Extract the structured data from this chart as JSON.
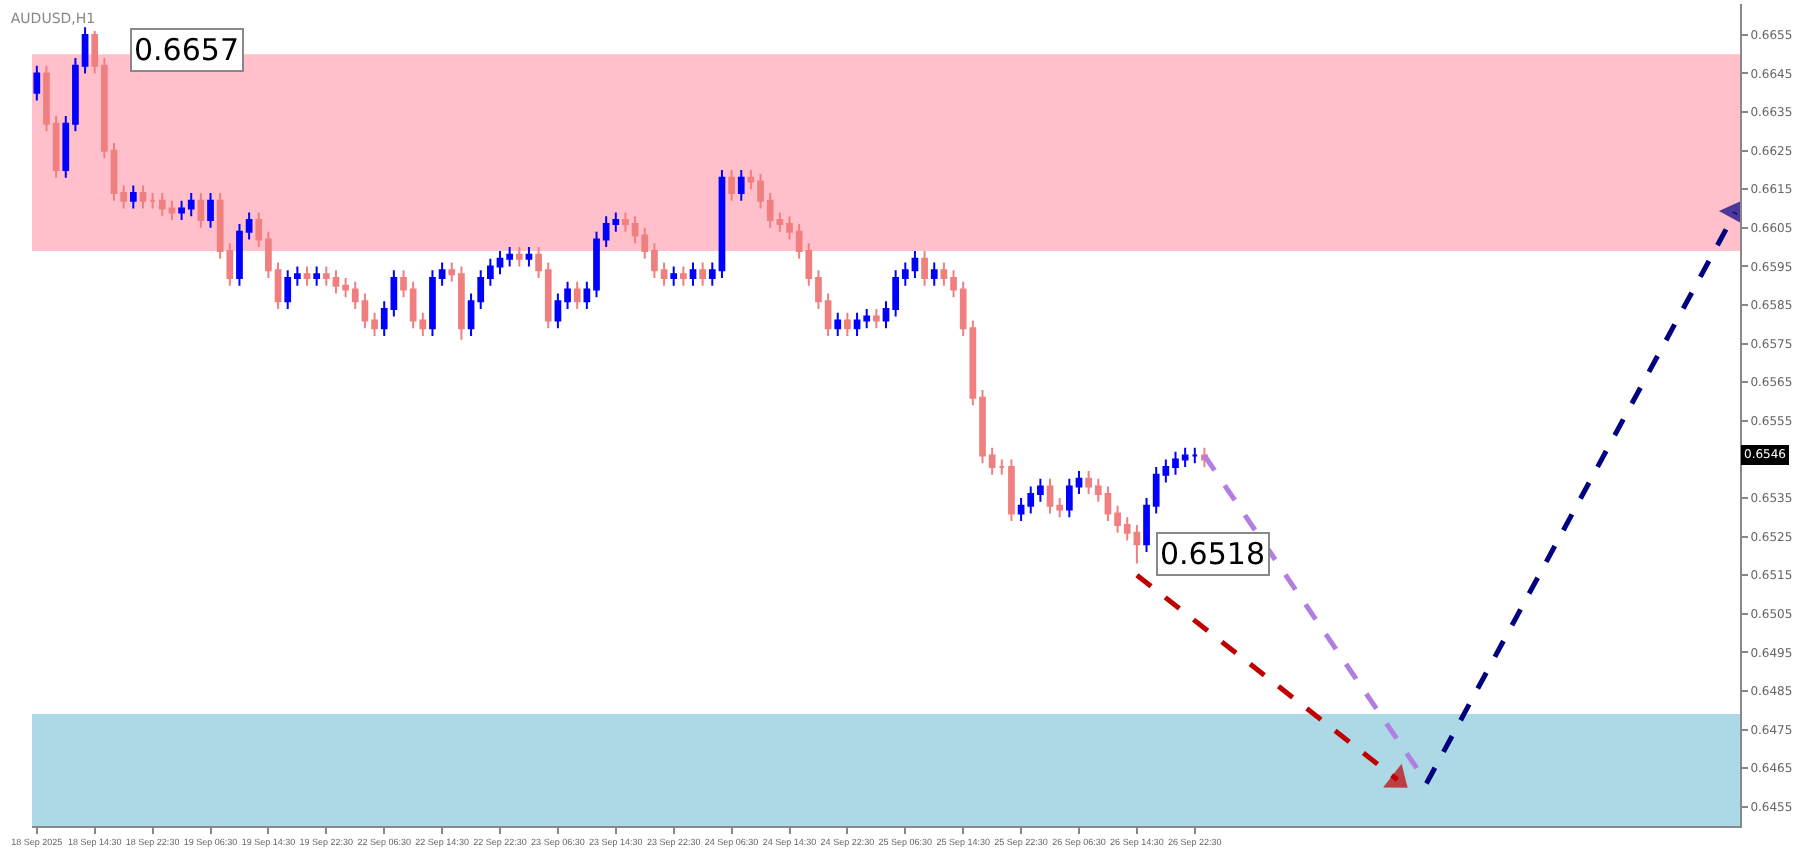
{
  "chart_data": {
    "type": "candlestick",
    "title": "AUDUSD,H1",
    "categories": [
      "18 Sep 2025",
      null,
      null,
      null,
      null,
      null,
      "18 Sep 14:30",
      null,
      null,
      null,
      null,
      null,
      "18 Sep 22:30",
      null,
      null,
      null,
      null,
      null,
      "19 Sep 06:30",
      null,
      null,
      null,
      null,
      null,
      "19 Sep 14:30",
      null,
      null,
      null,
      null,
      null,
      "19 Sep 22:30",
      null,
      null,
      null,
      null,
      null,
      "22 Sep 06:30",
      null,
      null,
      null,
      null,
      null,
      "22 Sep 14:30",
      null,
      null,
      null,
      null,
      null,
      "22 Sep 22:30",
      null,
      null,
      null,
      null,
      null,
      "23 Sep 06:30",
      null,
      null,
      null,
      null,
      null,
      "23 Sep 14:30",
      null,
      null,
      null,
      null,
      null,
      "23 Sep 22:30",
      null,
      null,
      null,
      null,
      null,
      "24 Sep 06:30",
      null,
      null,
      null,
      null,
      null,
      "24 Sep 14:30",
      null,
      null,
      null,
      null,
      null,
      "24 Sep 22:30",
      null,
      null,
      null,
      null,
      null,
      "25 Sep 06:30",
      null,
      null,
      null,
      null,
      null,
      "25 Sep 14:30",
      null,
      null,
      null,
      null,
      null,
      "25 Sep 22:30",
      null,
      null,
      null,
      null,
      null,
      "26 Sep 06:30",
      null,
      null,
      null,
      null,
      null,
      "26 Sep 14:30",
      null,
      null,
      null,
      null,
      null,
      "26 Sep 22:30",
      null,
      null,
      null,
      null,
      null,
      null,
      null,
      null,
      null,
      null,
      null,
      null,
      null,
      null,
      null,
      null,
      null,
      null,
      null,
      null,
      null,
      null,
      null,
      null,
      null,
      null,
      null,
      null,
      null,
      null,
      null,
      null,
      null,
      null,
      null,
      null,
      null,
      null,
      null,
      null,
      null,
      null,
      null,
      null,
      null,
      null,
      null,
      null,
      null,
      null,
      null,
      null,
      null,
      null,
      null,
      null
    ],
    "ohlc": [
      [
        0.664,
        0.6647,
        0.6638,
        0.6645
      ],
      [
        0.6645,
        0.6647,
        0.663,
        0.6632
      ],
      [
        0.6632,
        0.6634,
        0.6618,
        0.662
      ],
      [
        0.662,
        0.6634,
        0.6618,
        0.6632
      ],
      [
        0.6632,
        0.6649,
        0.663,
        0.6647
      ],
      [
        0.6647,
        0.6657,
        0.6645,
        0.6655
      ],
      [
        0.6655,
        0.6656,
        0.6645,
        0.6647
      ],
      [
        0.6647,
        0.6649,
        0.6623,
        0.6625
      ],
      [
        0.6625,
        0.6627,
        0.6612,
        0.6614
      ],
      [
        0.6614,
        0.6616,
        0.661,
        0.6612
      ],
      [
        0.6612,
        0.6616,
        0.661,
        0.6614
      ],
      [
        0.6614,
        0.6616,
        0.661,
        0.6612
      ],
      [
        0.6612,
        0.6614,
        0.661,
        0.6612
      ],
      [
        0.6612,
        0.6614,
        0.6608,
        0.661
      ],
      [
        0.661,
        0.6612,
        0.6607,
        0.6609
      ],
      [
        0.6609,
        0.6612,
        0.6607,
        0.661
      ],
      [
        0.661,
        0.6614,
        0.6608,
        0.6612
      ],
      [
        0.6612,
        0.6614,
        0.6605,
        0.6607
      ],
      [
        0.6607,
        0.6614,
        0.6605,
        0.6612
      ],
      [
        0.6612,
        0.6614,
        0.6597,
        0.6599
      ],
      [
        0.6599,
        0.6601,
        0.659,
        0.6592
      ],
      [
        0.6592,
        0.6606,
        0.659,
        0.6604
      ],
      [
        0.6604,
        0.6609,
        0.6602,
        0.6607
      ],
      [
        0.6607,
        0.6609,
        0.66,
        0.6602
      ],
      [
        0.6602,
        0.6604,
        0.6592,
        0.6594
      ],
      [
        0.6594,
        0.6596,
        0.6584,
        0.6586
      ],
      [
        0.6586,
        0.6594,
        0.6584,
        0.6592
      ],
      [
        0.6592,
        0.6595,
        0.659,
        0.6593
      ],
      [
        0.6593,
        0.6595,
        0.659,
        0.6592
      ],
      [
        0.6592,
        0.6595,
        0.659,
        0.6593
      ],
      [
        0.6593,
        0.6595,
        0.659,
        0.6592
      ],
      [
        0.6592,
        0.6594,
        0.6588,
        0.659
      ],
      [
        0.659,
        0.6592,
        0.6587,
        0.6589
      ],
      [
        0.6589,
        0.6591,
        0.6584,
        0.6586
      ],
      [
        0.6586,
        0.6588,
        0.6579,
        0.6581
      ],
      [
        0.6581,
        0.6583,
        0.6577,
        0.6579
      ],
      [
        0.6579,
        0.6586,
        0.6577,
        0.6584
      ],
      [
        0.6584,
        0.6594,
        0.6582,
        0.6592
      ],
      [
        0.6592,
        0.6594,
        0.6587,
        0.6589
      ],
      [
        0.6589,
        0.6591,
        0.6579,
        0.6581
      ],
      [
        0.6581,
        0.6583,
        0.6577,
        0.6579
      ],
      [
        0.6579,
        0.6594,
        0.6577,
        0.6592
      ],
      [
        0.6592,
        0.6596,
        0.659,
        0.6594
      ],
      [
        0.6594,
        0.6596,
        0.6591,
        0.6593
      ],
      [
        0.6593,
        0.6595,
        0.6576,
        0.6579
      ],
      [
        0.6579,
        0.6588,
        0.6577,
        0.6586
      ],
      [
        0.6586,
        0.6594,
        0.6584,
        0.6592
      ],
      [
        0.6592,
        0.6597,
        0.659,
        0.6595
      ],
      [
        0.6595,
        0.6599,
        0.6593,
        0.6597
      ],
      [
        0.6597,
        0.66,
        0.6595,
        0.6598
      ],
      [
        0.6598,
        0.66,
        0.6595,
        0.6597
      ],
      [
        0.6597,
        0.66,
        0.6595,
        0.6598
      ],
      [
        0.6598,
        0.66,
        0.6592,
        0.6594
      ],
      [
        0.6594,
        0.6596,
        0.6579,
        0.6581
      ],
      [
        0.6581,
        0.6588,
        0.6579,
        0.6586
      ],
      [
        0.6586,
        0.6591,
        0.6584,
        0.6589
      ],
      [
        0.6589,
        0.6591,
        0.6584,
        0.6586
      ],
      [
        0.6586,
        0.6591,
        0.6584,
        0.6589
      ],
      [
        0.6589,
        0.6604,
        0.6587,
        0.6602
      ],
      [
        0.6602,
        0.6608,
        0.66,
        0.6606
      ],
      [
        0.6606,
        0.6609,
        0.6604,
        0.6607
      ],
      [
        0.6607,
        0.6609,
        0.6604,
        0.6606
      ],
      [
        0.6606,
        0.6608,
        0.6601,
        0.6603
      ],
      [
        0.6603,
        0.6605,
        0.6597,
        0.6599
      ],
      [
        0.6599,
        0.6601,
        0.6592,
        0.6594
      ],
      [
        0.6594,
        0.6596,
        0.659,
        0.6592
      ],
      [
        0.6592,
        0.6595,
        0.659,
        0.6593
      ],
      [
        0.6593,
        0.6595,
        0.659,
        0.6592
      ],
      [
        0.6592,
        0.6596,
        0.659,
        0.6594
      ],
      [
        0.6594,
        0.6596,
        0.659,
        0.6592
      ],
      [
        0.6592,
        0.6596,
        0.659,
        0.6594
      ],
      [
        0.6594,
        0.662,
        0.6592,
        0.6618
      ],
      [
        0.6618,
        0.662,
        0.6612,
        0.6614
      ],
      [
        0.6614,
        0.662,
        0.6612,
        0.6618
      ],
      [
        0.6618,
        0.662,
        0.6615,
        0.6617
      ],
      [
        0.6617,
        0.6619,
        0.661,
        0.6612
      ],
      [
        0.6612,
        0.6614,
        0.6605,
        0.6607
      ],
      [
        0.6607,
        0.6609,
        0.6604,
        0.6606
      ],
      [
        0.6606,
        0.6608,
        0.6602,
        0.6604
      ],
      [
        0.6604,
        0.6606,
        0.6597,
        0.6599
      ],
      [
        0.6599,
        0.6601,
        0.659,
        0.6592
      ],
      [
        0.6592,
        0.6594,
        0.6584,
        0.6586
      ],
      [
        0.6586,
        0.6588,
        0.6577,
        0.6579
      ],
      [
        0.6579,
        0.6583,
        0.6577,
        0.6581
      ],
      [
        0.6581,
        0.6583,
        0.6577,
        0.6579
      ],
      [
        0.6579,
        0.6583,
        0.6577,
        0.6581
      ],
      [
        0.6581,
        0.6584,
        0.6579,
        0.6582
      ],
      [
        0.6582,
        0.6584,
        0.6579,
        0.6581
      ],
      [
        0.6581,
        0.6586,
        0.6579,
        0.6584
      ],
      [
        0.6584,
        0.6594,
        0.6582,
        0.6592
      ],
      [
        0.6592,
        0.6596,
        0.659,
        0.6594
      ],
      [
        0.6594,
        0.6599,
        0.6592,
        0.6597
      ],
      [
        0.6597,
        0.6599,
        0.659,
        0.6592
      ],
      [
        0.6592,
        0.6596,
        0.659,
        0.6594
      ],
      [
        0.6594,
        0.6596,
        0.659,
        0.6592
      ],
      [
        0.6592,
        0.6594,
        0.6587,
        0.6589
      ],
      [
        0.6589,
        0.6591,
        0.6577,
        0.6579
      ],
      [
        0.6579,
        0.6581,
        0.6559,
        0.6561
      ],
      [
        0.6561,
        0.6563,
        0.6544,
        0.6546
      ],
      [
        0.6546,
        0.6548,
        0.6541,
        0.6543
      ],
      [
        0.6543,
        0.6545,
        0.6541,
        0.6543
      ],
      [
        0.6543,
        0.6545,
        0.6529,
        0.6531
      ],
      [
        0.6531,
        0.6535,
        0.6529,
        0.6533
      ],
      [
        0.6533,
        0.6538,
        0.6531,
        0.6536
      ],
      [
        0.6536,
        0.654,
        0.6534,
        0.6538
      ],
      [
        0.6538,
        0.654,
        0.6531,
        0.6533
      ],
      [
        0.6533,
        0.6535,
        0.653,
        0.6532
      ],
      [
        0.6532,
        0.654,
        0.653,
        0.6538
      ],
      [
        0.6538,
        0.6542,
        0.6536,
        0.654
      ],
      [
        0.654,
        0.6542,
        0.6536,
        0.6538
      ],
      [
        0.6538,
        0.654,
        0.6534,
        0.6536
      ],
      [
        0.6536,
        0.6538,
        0.6529,
        0.6531
      ],
      [
        0.6531,
        0.6533,
        0.6526,
        0.6528
      ],
      [
        0.6528,
        0.653,
        0.6524,
        0.6526
      ],
      [
        0.6526,
        0.6528,
        0.6518,
        0.6523
      ],
      [
        0.6523,
        0.6535,
        0.6521,
        0.6533
      ],
      [
        0.6533,
        0.6543,
        0.6531,
        0.6541
      ],
      [
        0.6541,
        0.6545,
        0.6539,
        0.6543
      ],
      [
        0.6543,
        0.6547,
        0.6541,
        0.6545
      ],
      [
        0.6545,
        0.6548,
        0.6543,
        0.6546
      ],
      [
        0.6546,
        0.6548,
        0.6544,
        0.6546
      ],
      [
        0.6546,
        0.6548,
        0.6543,
        0.6545
      ],
      null,
      null,
      null,
      null,
      null,
      null,
      null,
      null,
      null,
      null,
      null,
      null,
      null,
      null,
      null,
      null,
      null,
      null,
      null,
      null,
      null,
      null,
      null,
      null,
      null,
      null,
      null,
      null,
      null,
      null,
      null,
      null,
      null,
      null,
      null,
      null,
      null,
      null,
      null,
      null,
      null,
      null,
      null,
      null,
      null,
      null,
      null,
      null,
      null,
      null,
      null,
      null,
      null,
      null,
      null
    ],
    "series": [
      {
        "type": "line",
        "color": "#b07fe0",
        "line_style": "dashed",
        "marker": "none",
        "values": [
          null,
          null,
          null,
          null,
          null,
          null,
          null,
          null,
          null,
          null,
          null,
          null,
          null,
          null,
          null,
          null,
          null,
          null,
          null,
          null,
          null,
          null,
          null,
          null,
          null,
          null,
          null,
          null,
          null,
          null,
          null,
          null,
          null,
          null,
          null,
          null,
          null,
          null,
          null,
          null,
          null,
          null,
          null,
          null,
          null,
          null,
          null,
          null,
          null,
          null,
          null,
          null,
          null,
          null,
          null,
          null,
          null,
          null,
          null,
          null,
          null,
          null,
          null,
          null,
          null,
          null,
          null,
          null,
          null,
          null,
          null,
          null,
          null,
          null,
          null,
          null,
          null,
          null,
          null,
          null,
          null,
          null,
          null,
          null,
          null,
          null,
          null,
          null,
          null,
          null,
          null,
          null,
          null,
          null,
          null,
          null,
          null,
          null,
          null,
          null,
          null,
          null,
          null,
          null,
          null,
          null,
          null,
          null,
          null,
          null,
          null,
          null,
          null,
          null,
          null,
          null,
          null,
          null,
          null,
          null,
          null,
          0.6546,
          null,
          null,
          null,
          null,
          null,
          null,
          null,
          null,
          null,
          null,
          null,
          null,
          null,
          null,
          null,
          null,
          null,
          null,
          null,
          null,
          null,
          0.6465,
          null,
          null,
          null,
          null,
          null,
          null,
          null,
          null,
          null,
          null,
          null,
          null,
          null,
          null,
          null,
          null,
          null,
          null,
          null,
          null,
          null,
          null,
          null,
          null,
          null,
          null,
          null,
          null,
          null,
          null,
          null,
          null,
          null
        ]
      },
      {
        "type": "line",
        "color": "#c00000",
        "line_style": "dashed",
        "marker": "triangle",
        "values": [
          null,
          null,
          null,
          null,
          null,
          null,
          null,
          null,
          null,
          null,
          null,
          null,
          null,
          null,
          null,
          null,
          null,
          null,
          null,
          null,
          null,
          null,
          null,
          null,
          null,
          null,
          null,
          null,
          null,
          null,
          null,
          null,
          null,
          null,
          null,
          null,
          null,
          null,
          null,
          null,
          null,
          null,
          null,
          null,
          null,
          null,
          null,
          null,
          null,
          null,
          null,
          null,
          null,
          null,
          null,
          null,
          null,
          null,
          null,
          null,
          null,
          null,
          null,
          null,
          null,
          null,
          null,
          null,
          null,
          null,
          null,
          null,
          null,
          null,
          null,
          null,
          null,
          null,
          null,
          null,
          null,
          null,
          null,
          null,
          null,
          null,
          null,
          null,
          null,
          null,
          null,
          null,
          null,
          null,
          null,
          null,
          null,
          null,
          null,
          null,
          null,
          null,
          null,
          null,
          null,
          null,
          null,
          null,
          null,
          null,
          null,
          null,
          null,
          null,
          0.6515,
          null,
          null,
          null,
          null,
          null,
          null,
          null,
          null,
          null,
          null,
          null,
          null,
          null,
          null,
          null,
          null,
          null,
          null,
          null,
          null,
          null,
          null,
          null,
          null,
          null,
          null,
          0.6462,
          null,
          null,
          null,
          null,
          null,
          null,
          null,
          null,
          null,
          null,
          null,
          null,
          null,
          null,
          null,
          null,
          null,
          null,
          null,
          null,
          null,
          null,
          null,
          null,
          null,
          null,
          null,
          null,
          null,
          null,
          null,
          null,
          null,
          null,
          null
        ]
      },
      {
        "type": "line",
        "color": "#000080",
        "line_style": "dashed",
        "marker": "triangle",
        "values": [
          null,
          null,
          null,
          null,
          null,
          null,
          null,
          null,
          null,
          null,
          null,
          null,
          null,
          null,
          null,
          null,
          null,
          null,
          null,
          null,
          null,
          null,
          null,
          null,
          null,
          null,
          null,
          null,
          null,
          null,
          null,
          null,
          null,
          null,
          null,
          null,
          null,
          null,
          null,
          null,
          null,
          null,
          null,
          null,
          null,
          null,
          null,
          null,
          null,
          null,
          null,
          null,
          null,
          null,
          null,
          null,
          null,
          null,
          null,
          null,
          null,
          null,
          null,
          null,
          null,
          null,
          null,
          null,
          null,
          null,
          null,
          null,
          null,
          null,
          null,
          null,
          null,
          null,
          null,
          null,
          null,
          null,
          null,
          null,
          null,
          null,
          null,
          null,
          null,
          null,
          null,
          null,
          null,
          null,
          null,
          null,
          null,
          null,
          null,
          null,
          null,
          null,
          null,
          null,
          null,
          null,
          null,
          null,
          null,
          null,
          null,
          null,
          null,
          null,
          null,
          null,
          null,
          null,
          null,
          null,
          null,
          null,
          null,
          null,
          null,
          null,
          null,
          null,
          null,
          null,
          null,
          null,
          null,
          null,
          null,
          null,
          null,
          null,
          null,
          null,
          null,
          null,
          null,
          null,
          0.6461,
          null,
          null,
          null,
          null,
          null,
          null,
          null,
          null,
          null,
          null,
          null,
          null,
          null,
          null,
          null,
          null,
          null,
          null,
          null,
          null,
          null,
          null,
          null,
          null,
          null,
          null,
          null,
          null,
          null,
          null,
          null,
          0.6609
        ]
      }
    ],
    "bands": [
      {
        "axis": "y",
        "from": 0.6599,
        "to": 0.665,
        "color": "#ffc0cb"
      },
      {
        "axis": "y",
        "from": 0.645,
        "to": 0.6479,
        "color": "#add8e6"
      }
    ],
    "annotations": [
      "0.6657",
      "0.6518",
      {
        "text": "0.6546",
        "y": 0.6546
      }
    ],
    "ylim": [
      0.645,
      0.6663
    ],
    "yticks": [
      0.6455,
      0.6465,
      0.6475,
      0.6485,
      0.6495,
      0.6505,
      0.6515,
      0.6525,
      0.6535,
      0.6555,
      0.6565,
      0.6575,
      0.6585,
      0.6595,
      0.6605,
      0.6615,
      0.6625,
      0.6635,
      0.6645,
      0.6655
    ]
  }
}
